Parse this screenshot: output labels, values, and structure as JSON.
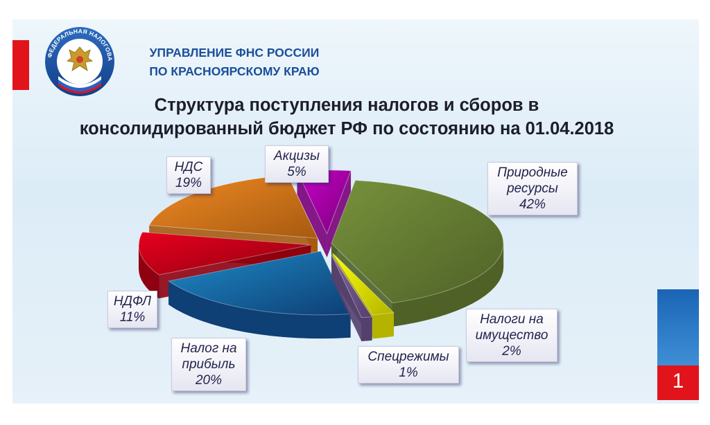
{
  "header": {
    "org_line1": "УПРАВЛЕНИЕ ФНС РОССИИ",
    "org_line2": "ПО КРАСНОЯРСКОМУ  КРАЮ",
    "logo_text": "ФЕДЕРАЛЬНАЯ НАЛОГОВАЯ СЛУЖБА"
  },
  "title": {
    "line1": "Структура поступления налогов и сборов в",
    "line2": "консолидированный бюджет РФ по состоянию на 01.04.2018"
  },
  "page_number": "1",
  "colors": {
    "brand_blue": "#1b4f9a",
    "accent_red": "#e2141b"
  },
  "chart_data": {
    "type": "pie",
    "style": "3d-exploded",
    "unit": "%",
    "slices": [
      {
        "name": "Природные ресурсы",
        "label_line1": "Природные",
        "label_line2": "ресурсы",
        "pct_text": "42%",
        "value": 42,
        "color": "#76923c",
        "dark": "#4f6127"
      },
      {
        "name": "Налоги на имущество",
        "label_line1": "Налоги на",
        "label_line2": "имущество",
        "pct_text": "2%",
        "value": 2,
        "color": "#ffff00",
        "dark": "#b3b300"
      },
      {
        "name": "Спецрежимы",
        "label_line1": "Спецрежимы",
        "label_line2": "",
        "pct_text": "1%",
        "value": 1,
        "color": "#8064a2",
        "dark": "#54406d"
      },
      {
        "name": "Налог на прибыль",
        "label_line1": "Налог на",
        "label_line2": "прибыль",
        "pct_text": "20%",
        "value": 20,
        "color": "#1e8bc8",
        "dark": "#0e3f75"
      },
      {
        "name": "НДФЛ",
        "label_line1": "НДФЛ",
        "label_line2": "",
        "pct_text": "11%",
        "value": 11,
        "color": "#e8001e",
        "dark": "#8f0010"
      },
      {
        "name": "НДС",
        "label_line1": "НДС",
        "label_line2": "",
        "pct_text": "19%",
        "value": 19,
        "color": "#f08a24",
        "dark": "#a65a10"
      },
      {
        "name": "Акцизы",
        "label_line1": "Акцизы",
        "label_line2": "",
        "pct_text": "5%",
        "value": 5,
        "color": "#cc00cc",
        "dark": "#7a007a"
      }
    ]
  }
}
